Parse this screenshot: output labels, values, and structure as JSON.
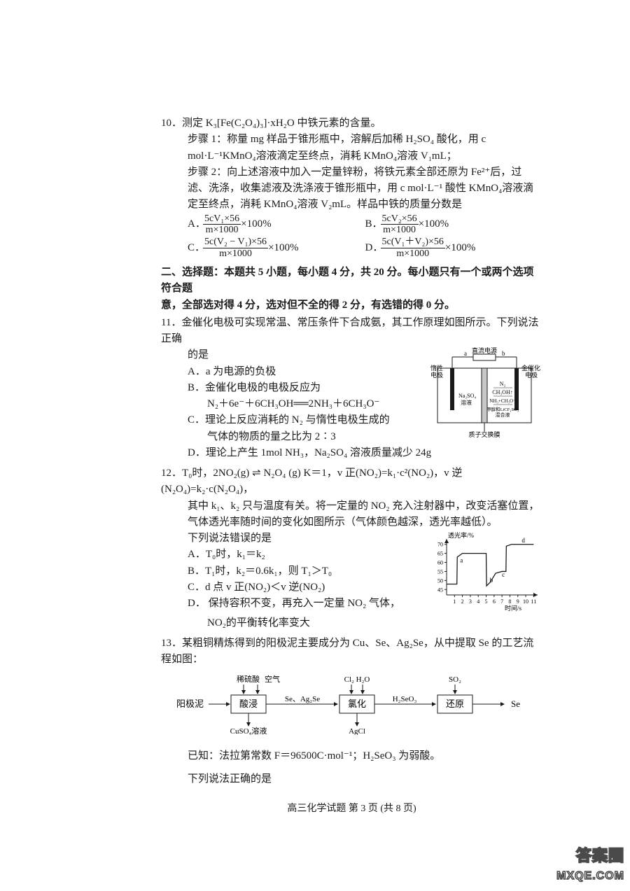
{
  "page": {
    "footer": "高三化学试题  第 3 页 (共 8 页)",
    "watermark_top": "答案圈",
    "watermark_bottom": "MXQE.COM"
  },
  "q10": {
    "num": "10．",
    "stem": "测定 K₃[Fe(C₂O₄)₃]·xH₂O 中铁元素的含量。",
    "step1": "步骤 1：称量 mg 样品于锥形瓶中，溶解后加稀 H₂SO₄ 酸化，用 c mol·L⁻¹KMnO₄溶液滴定至终点，消耗 KMnO₄溶液 V₁mL；",
    "step2": "步骤 2：向上述溶液中加入一定量锌粉，将铁元素全部还原为 Fe²⁺后，过滤、洗涤，收集滤液及洗涤液于锥形瓶中，用 c mol·L⁻¹ 酸性 KMnO₄溶液滴定至终点，消耗 KMnO₄溶液 V₂mL。样品中铁的质量分数是",
    "opts": {
      "A_num": "5cV₁×56",
      "A_den": "m×1000",
      "B_num": "5cV₂×56",
      "B_den": "m×1000",
      "C_num": "5c(V₂ − V₁)×56",
      "C_den": "m×1000",
      "D_num": "5c(V₁＋V₂)×56",
      "D_den": "m×1000",
      "tail": "×100%"
    }
  },
  "sect2": {
    "line1": "二、选择题：本题共 5 小题，每小题 4 分，共 20 分。每小题只有一个或两个选项符合题",
    "line2": "意，全部选对得 4 分，选对但不全的得 2 分，有选错的得 0 分。"
  },
  "q11": {
    "num": "11．",
    "stem1": "金催化电极可实现常温、常压条件下合成氨，其工作原理如图所示。下列说法正确",
    "stem2": "的是",
    "A": "A．a 为电源的负极",
    "B1": "B．金催化电极的电极反应为",
    "B2": "N₂＋6e⁻＋6CH₃OH══2NH₃＋6CH₃O⁻",
    "C1": "C．理论上反应消耗的 N₂ 与惰性电极生成的",
    "C2": "气体的物质的量之比为 2∶3",
    "D": "D．理论上产生 1mol NH₃，Na₂SO₄ 溶液质量减少 24g",
    "fig": {
      "top": "直流电源",
      "a": "a",
      "b": "b",
      "left_elec": "惰性\n电极",
      "right_elec": "金催化\n电极",
      "left_sol": "Na₂SO₄\n溶液",
      "r1": "N₂",
      "r2": "CH₃OH↑",
      "r3": "NH₃+CH₃O⁻",
      "r4": "甲醇和LiCF₃SO₃\n混合液",
      "membrane": "质子交换膜",
      "line_color": "#1a1a1a",
      "bg": "#ffffff",
      "gray": "#c8c8c8"
    }
  },
  "q12": {
    "num": "12．",
    "stem1": "T₀时，2NO₂(g) ⇌ N₂O₄ (g)  K＝1，v 正(NO₂)=k₁·c²(NO₂)，v 逆(N₂O₄)=k₂·c(N₂O₄)，",
    "stem2": "其中 k₁、k₂ 只与温度有关。将一定量的 NO₂ 充入注射器中，改变活塞位置，",
    "stem3": "气体透光率随时间的变化如图所示（气体颜色越深，透光率越低）。",
    "stem4": "下列说法错误的是",
    "A": "A．T₀时，k₁＝k₂",
    "B": "B．T₁时，k₂＝0.6k₁，则 T₁＞T₀",
    "C": "C．d 点 v 正(NO₂)＜v 逆(NO₂)",
    "D1": "D． 保持容积不变，再充入一定量 NO₂ 气体，",
    "D2": "NO₂的平衡转化率变大",
    "fig": {
      "ylabel": "透光率/%",
      "xlabel": "时间/s",
      "yticks": [
        "45",
        "50",
        "55",
        "60",
        "65",
        "70"
      ],
      "xticks": [
        "1",
        "2",
        "3",
        "4",
        "5",
        "6",
        "7",
        "8",
        "9",
        "10",
        "11"
      ],
      "pts": {
        "a": "a",
        "b": "b",
        "c": "c",
        "d": "d"
      },
      "line_color": "#1a1a1a",
      "xlim": [
        0,
        11.5
      ],
      "ylim": [
        42,
        73
      ],
      "curve": [
        [
          0.0,
          48
        ],
        [
          1.3,
          48
        ],
        [
          1.35,
          63
        ],
        [
          2.0,
          65
        ],
        [
          3.0,
          65
        ],
        [
          4.5,
          65
        ],
        [
          5.0,
          65
        ],
        [
          5.05,
          47
        ],
        [
          5.5,
          49
        ],
        [
          6.2,
          54
        ],
        [
          7.0,
          55
        ],
        [
          7.5,
          55
        ],
        [
          7.55,
          69
        ],
        [
          8.2,
          70
        ],
        [
          10.0,
          70
        ],
        [
          11.0,
          70
        ]
      ],
      "label_pos": {
        "a": [
          1.7,
          60
        ],
        "b": [
          5.45,
          49
        ],
        "c": [
          7.0,
          52
        ],
        "d": [
          9.5,
          71
        ]
      }
    }
  },
  "q13": {
    "num": "13．",
    "stem": "某粗铜精炼得到的阳极泥主要成分为 Cu、Se、Ag₂Se，从中提取 Se 的工艺流程如图：",
    "flow": {
      "in0": "阳极泥",
      "b1": "酸浸",
      "t1a": "稀硫酸",
      "t1b": "空气",
      "d1": "CuSO₄溶液",
      "mid1": "Se、Ag₂Se",
      "b2": "氯化",
      "t2": "Cl₂  H₂O",
      "d2": "AgCl",
      "mid2": "H₂SeO₃",
      "b3": "还原",
      "t3": "SO₂",
      "out": "Se",
      "arrow_color": "#1a1a1a"
    },
    "known": "已知：法拉第常数 F＝96500C·mol⁻¹；H₂SeO₃ 为弱酸。",
    "tail": "下列说法正确的是"
  }
}
